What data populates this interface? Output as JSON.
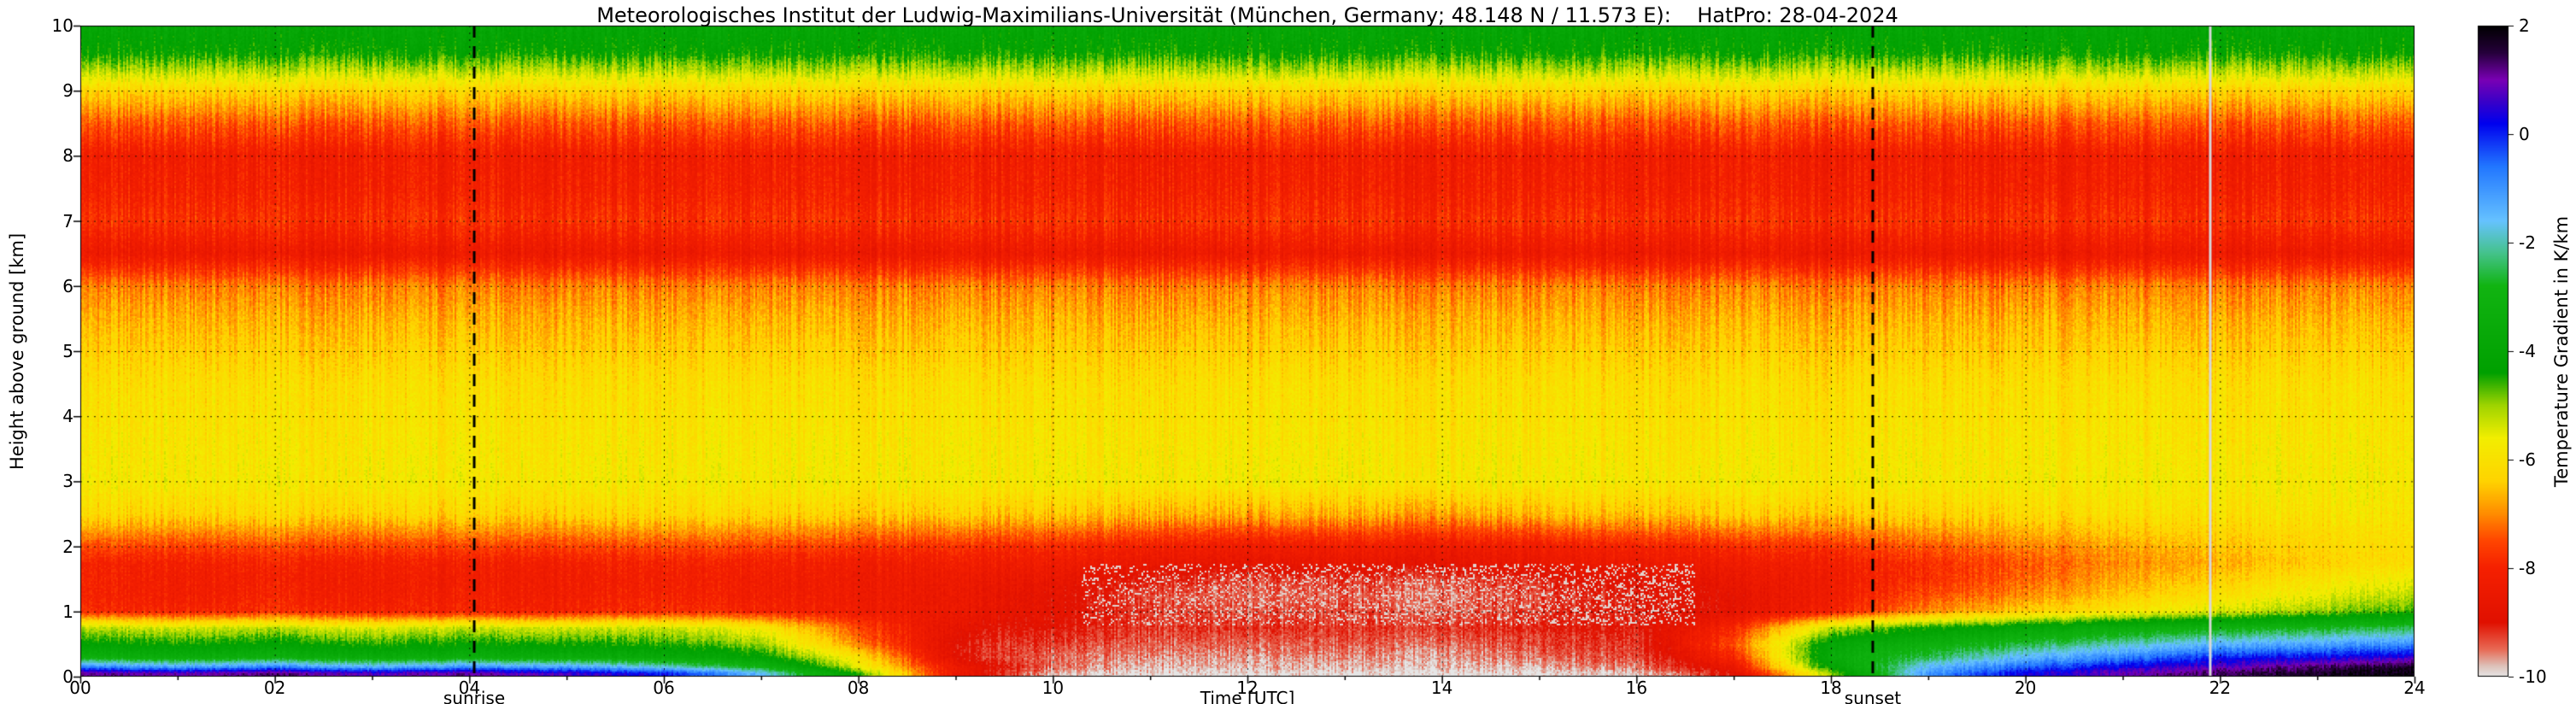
{
  "chart_data": {
    "type": "heatmap",
    "title": "Meteorologisches Institut der Ludwig-Maximilians-Universität (München, Germany; 48.148 N / 11.573 E):    HatPro: 28-04-2024",
    "xlabel": "Time [UTC]",
    "ylabel": "Height above ground [km]",
    "x_range_hours": [
      0,
      24
    ],
    "y_range_km": [
      0,
      10
    ],
    "x_ticks": [
      "00",
      "02",
      "04",
      "06",
      "08",
      "10",
      "12",
      "14",
      "16",
      "18",
      "20",
      "22",
      "24"
    ],
    "y_ticks": [
      "0",
      "1",
      "2",
      "3",
      "4",
      "5",
      "6",
      "7",
      "8",
      "9",
      "10"
    ],
    "grid": true,
    "colorbar": {
      "label": "Temperature Gradient in K/km",
      "range": [
        -10,
        2
      ],
      "ticks": [
        2,
        0,
        -2,
        -4,
        -6,
        -8,
        -10
      ],
      "stops": [
        [
          2.0,
          "#000000"
        ],
        [
          1.5,
          "#25003a"
        ],
        [
          1.0,
          "#7a00b4"
        ],
        [
          0.6,
          "#3a00c8"
        ],
        [
          0.2,
          "#0000ee"
        ],
        [
          -0.6,
          "#2277ff"
        ],
        [
          -1.6,
          "#66c2ff"
        ],
        [
          -2.2,
          "#44c28a"
        ],
        [
          -2.8,
          "#11b411"
        ],
        [
          -4.4,
          "#00a000"
        ],
        [
          -5.0,
          "#9fd400"
        ],
        [
          -5.6,
          "#f2ee00"
        ],
        [
          -6.4,
          "#ffd300"
        ],
        [
          -7.0,
          "#ff8c00"
        ],
        [
          -7.5,
          "#ff4500"
        ],
        [
          -8.0,
          "#f52000"
        ],
        [
          -9.0,
          "#e01000"
        ],
        [
          -9.5,
          "#e86a55"
        ],
        [
          -9.8,
          "#ddc0b8"
        ],
        [
          -10.0,
          "#e6e6e6"
        ]
      ]
    },
    "annotations": {
      "sunrise": {
        "label": "sunrise",
        "time_utc": 4.05
      },
      "sunset": {
        "label": "sunset",
        "time_utc": 18.43
      },
      "missing_data_column_utc": 21.9
    },
    "x_hours": [
      0,
      1,
      2,
      3,
      4,
      5,
      6,
      7,
      8,
      9,
      10,
      11,
      12,
      13,
      14,
      15,
      16,
      17,
      18,
      19,
      20,
      21,
      22,
      23,
      24
    ],
    "heights_km": [
      0.05,
      0.15,
      0.3,
      0.5,
      0.75,
      1.0,
      1.25,
      1.5,
      1.75,
      2.0,
      2.5,
      3.0,
      3.5,
      4.0,
      4.5,
      5.0,
      5.5,
      6.0,
      6.5,
      7.0,
      7.5,
      8.0,
      8.5,
      9.0,
      9.3,
      9.6,
      10.0
    ],
    "values_by_height": [
      [
        1.2,
        0.9,
        1.3,
        0.8,
        1.1,
        0.7,
        0.1,
        -1.5,
        -4.5,
        -8.5,
        -9.8,
        -10,
        -10,
        -10,
        -10,
        -10,
        -9.8,
        -9,
        -5,
        -1,
        0.3,
        0.9,
        1.4,
        1.7,
        1.9
      ],
      [
        -0.8,
        -1.2,
        -0.8,
        -1.4,
        -1,
        -1.2,
        -1.8,
        -3,
        -5.5,
        -8.5,
        -9.5,
        -9.8,
        -9.8,
        -9.8,
        -9.8,
        -9.8,
        -9.5,
        -8.5,
        -4,
        -1.5,
        -0.5,
        0.3,
        0.8,
        1.3,
        1.7
      ],
      [
        -3.2,
        -3.4,
        -3.2,
        -3.5,
        -3.3,
        -3.4,
        -3.6,
        -4.2,
        -6,
        -9,
        -9.5,
        -9.6,
        -9.7,
        -9.6,
        -9.7,
        -9.5,
        -9.3,
        -8,
        -3.5,
        -2.5,
        -1.5,
        -0.8,
        0,
        0.2,
        0.5
      ],
      [
        -4.2,
        -4.4,
        -4.2,
        -4.5,
        -4.3,
        -4.4,
        -4.5,
        -5,
        -7,
        -9,
        -9.3,
        -9.4,
        -9.5,
        -9.4,
        -9.5,
        -9.3,
        -9.2,
        -7.5,
        -3.8,
        -3.2,
        -2.6,
        -2,
        -1.4,
        -1.2,
        -0.9
      ],
      [
        -5.2,
        -5.4,
        -5.2,
        -5.5,
        -5.3,
        -5.4,
        -5.3,
        -5.8,
        -7.5,
        -8.8,
        -9,
        -9.2,
        -9.2,
        -9.2,
        -9.2,
        -9.1,
        -9,
        -8,
        -5.2,
        -4.4,
        -3.9,
        -3.4,
        -3,
        -2.8,
        -2.5
      ],
      [
        -7.8,
        -8,
        -7.8,
        -8,
        -8,
        -8,
        -7.8,
        -8,
        -8.2,
        -8.5,
        -8.8,
        -9.2,
        -9.4,
        -9.3,
        -9.4,
        -9.2,
        -9,
        -8.8,
        -8,
        -7,
        -6.4,
        -5.9,
        -5.4,
        -5,
        -4.6
      ],
      [
        -8,
        -8.2,
        -8,
        -8.2,
        -8.1,
        -8.2,
        -8,
        -8.2,
        -8.3,
        -8.5,
        -8.8,
        -9.3,
        -9.5,
        -9.4,
        -9.5,
        -9.3,
        -9,
        -8.8,
        -8.2,
        -7.5,
        -7,
        -6.5,
        -6,
        -5.6,
        -5.2
      ],
      [
        -8,
        -8.2,
        -8.1,
        -8.2,
        -8.2,
        -8.2,
        -8.1,
        -8.2,
        -8.3,
        -8.4,
        -8.6,
        -9,
        -9.3,
        -9.2,
        -9.3,
        -9.1,
        -8.8,
        -8.6,
        -8.2,
        -7.8,
        -7.3,
        -6.8,
        -6.4,
        -6,
        -5.6
      ],
      [
        -8,
        -8.1,
        -8,
        -8.1,
        -8.1,
        -8.1,
        -8,
        -8.1,
        -8.2,
        -8.2,
        -8.3,
        -8.5,
        -8.7,
        -8.6,
        -8.7,
        -8.5,
        -8.4,
        -8.3,
        -8.1,
        -7.8,
        -7.4,
        -7,
        -6.7,
        -6.4,
        -6.1
      ],
      [
        -7.5,
        -7.6,
        -7.5,
        -7.6,
        -7.6,
        -7.6,
        -7.5,
        -7.6,
        -7.7,
        -7.8,
        -7.9,
        -8.1,
        -8.3,
        -8.2,
        -8.3,
        -8.2,
        -8,
        -7.9,
        -7.7,
        -7.4,
        -7.1,
        -6.8,
        -6.5,
        -6.3,
        -6.1
      ],
      [
        -6.2,
        -6.3,
        -6.2,
        -6.3,
        -6.3,
        -6.3,
        -6.2,
        -6.3,
        -6.4,
        -6.4,
        -6.5,
        -6.6,
        -6.8,
        -6.7,
        -6.8,
        -6.6,
        -6.5,
        -6.4,
        -6.4,
        -6.3,
        -6.2,
        -6.1,
        -6,
        -6,
        -5.9
      ],
      -5.8,
      -5.9,
      -6.0,
      -6.1,
      -6.4,
      -6.7,
      -7.1,
      -8.4,
      -7.8,
      -8.1,
      -8.2,
      -7.4,
      -6.3,
      -5.2,
      -4.3,
      -3.9
    ]
  }
}
